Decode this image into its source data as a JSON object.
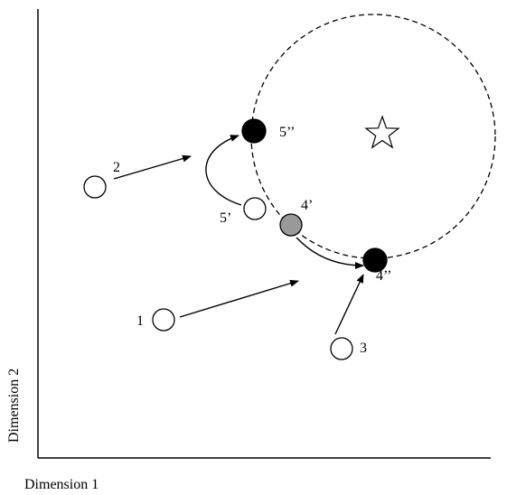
{
  "axes": {
    "x_label": "Dimension 1",
    "y_label": "Dimension 2"
  },
  "points": {
    "p1": "1",
    "p2": "2",
    "p3": "3",
    "p4_prime": "4’",
    "p4_double": "4’’",
    "p5_prime": "5’",
    "p5_double": "5’’"
  },
  "colors": {
    "line": "#000000",
    "open_fill": "#ffffff",
    "filled": "#000000",
    "intermediate": "#999999"
  },
  "icons": {
    "target": "star-outline-icon"
  }
}
